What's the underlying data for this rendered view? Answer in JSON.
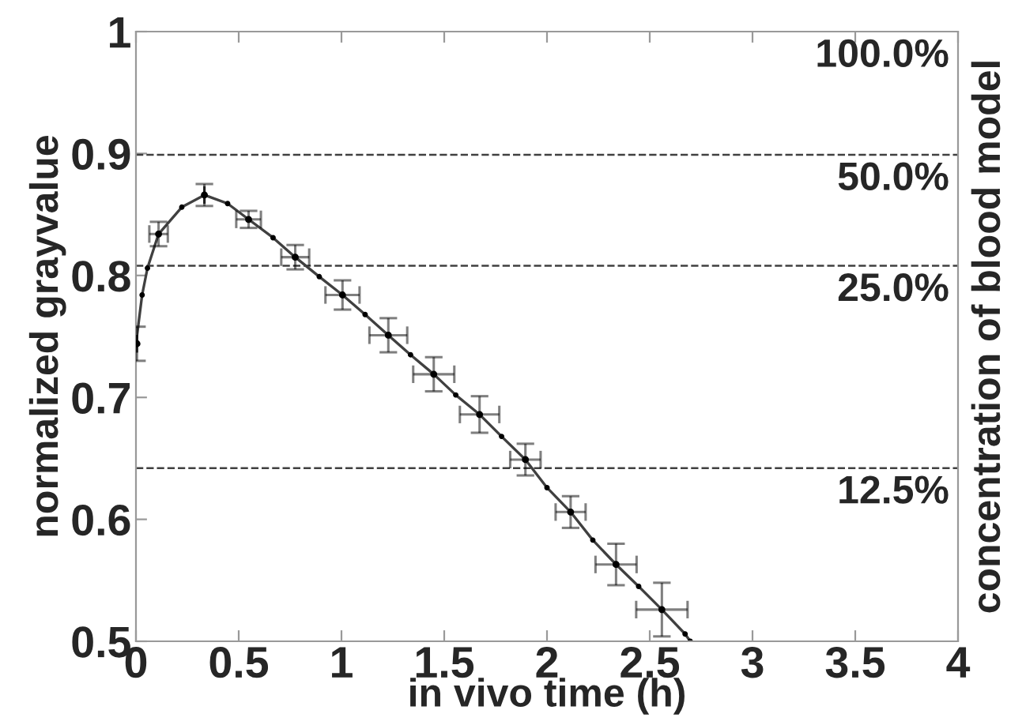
{
  "chart_data": {
    "type": "line",
    "annotations": [
      "100.0%",
      "50.0%",
      "25.0%",
      "12.5%"
    ],
    "xlabel": "in vivo time (h)",
    "ylabel": "normalized grayvalue",
    "y2label": "concentration of blood model",
    "xlim": [
      0,
      4
    ],
    "xticks": [
      0,
      0.5,
      1,
      1.5,
      2,
      2.5,
      3,
      3.5,
      4
    ],
    "ylim": [
      0.5,
      1
    ],
    "yticks": [
      0.5,
      0.6,
      0.7,
      0.8,
      0.9,
      1
    ],
    "grid": false,
    "legend": false,
    "series": [
      {
        "color": "#404040",
        "marker": "circle",
        "line_style": "solid",
        "x": [
          0,
          0.03,
          0.056,
          0.11,
          0.223,
          0.333,
          0.446,
          0.548,
          0.667,
          0.775,
          0.892,
          1.005,
          1.115,
          1.228,
          1.336,
          1.449,
          1.556,
          1.672,
          1.779,
          1.895,
          2.0,
          2.115,
          2.223,
          2.336,
          2.446,
          2.559,
          2.672,
          2.697
        ],
        "values": [
          0.744,
          0.784,
          0.806,
          0.834,
          0.856,
          0.866,
          0.859,
          0.846,
          0.831,
          0.815,
          0.799,
          0.784,
          0.768,
          0.751,
          0.735,
          0.719,
          0.702,
          0.686,
          0.668,
          0.649,
          0.626,
          0.606,
          0.583,
          0.563,
          0.545,
          0.526,
          0.506,
          0.5
        ]
      },
      {
        "type": "scatter",
        "color": "#000000",
        "marker": "circle",
        "x": [
          0.005,
          0.11,
          0.333,
          0.548,
          0.775,
          1.005,
          1.228,
          1.449,
          1.672,
          1.895,
          2.115,
          2.336,
          2.559
        ],
        "values": [
          0.744,
          0.834,
          0.866,
          0.846,
          0.815,
          0.784,
          0.751,
          0.719,
          0.686,
          0.649,
          0.606,
          0.563,
          0.526
        ],
        "errors": [
          0.014,
          0.01,
          0.009,
          0.007,
          0.01,
          0.012,
          0.014,
          0.014,
          0.015,
          0.013,
          0.013,
          0.017,
          0.022
        ],
        "xerrors": [
          null,
          0.045,
          null,
          0.06,
          0.068,
          0.083,
          0.092,
          0.1,
          0.096,
          0.074,
          0.073,
          0.1,
          0.125
        ]
      }
    ],
    "ref_lines": [
      {
        "axis": "y",
        "value": 0.899,
        "color": "#404040",
        "line_style": "dashed"
      },
      {
        "axis": "y",
        "value": 0.808,
        "color": "#404040",
        "line_style": "dashed"
      },
      {
        "axis": "y",
        "value": 0.642,
        "color": "#404040",
        "line_style": "dashed"
      }
    ]
  }
}
